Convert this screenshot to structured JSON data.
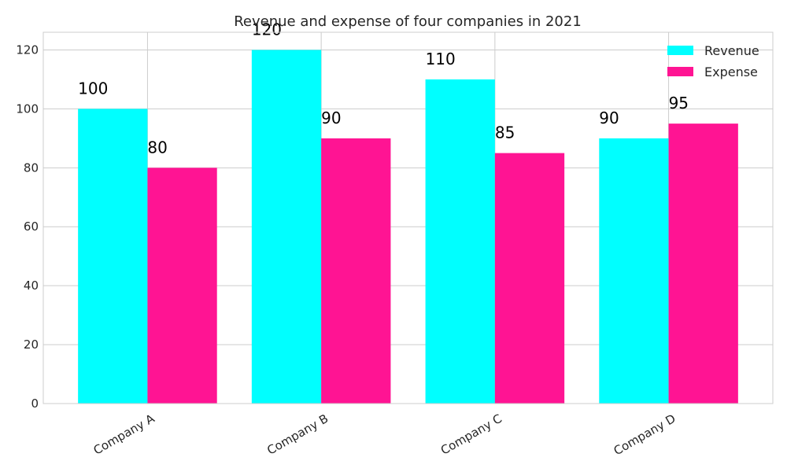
{
  "chart_data": {
    "type": "bar",
    "title": "Revenue and expense of four companies in 2021",
    "xlabel": "",
    "ylabel": "",
    "categories": [
      "Company A",
      "Company B",
      "Company C",
      "Company D"
    ],
    "series": [
      {
        "name": "Revenue",
        "values": [
          100,
          120,
          110,
          90
        ],
        "color": "#00ffff"
      },
      {
        "name": "Expense",
        "values": [
          80,
          90,
          85,
          95
        ],
        "color": "#ff1493"
      }
    ],
    "ylim": [
      0,
      126
    ],
    "yticks": [
      0,
      20,
      40,
      60,
      80,
      100,
      120
    ],
    "grid": true,
    "legend_position": "top-right",
    "data_labels": true
  }
}
